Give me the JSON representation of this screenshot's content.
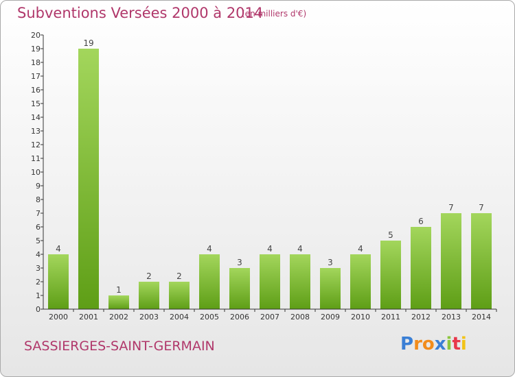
{
  "header": {
    "title": "Subventions Versées 2000 à 2014",
    "subtitle": "(en milliers d'€)"
  },
  "footer": {
    "commune": "SASSIERGES-SAINT-GERMAIN",
    "logo_letters": [
      "P",
      "r",
      "o",
      "x",
      "i",
      "t",
      "i"
    ],
    "logo_colors": [
      "#3a7fd5",
      "#f28c1c",
      "#f28c1c",
      "#3a7fd5",
      "#8cc63f",
      "#e8374a",
      "#f2c318"
    ]
  },
  "colors": {
    "bar_top": "#a3d65c",
    "bar_bottom": "#5e9e16",
    "title": "#b0376a",
    "axis": "#333333"
  },
  "chart_data": {
    "type": "bar",
    "categories": [
      "2000",
      "2001",
      "2002",
      "2003",
      "2004",
      "2005",
      "2006",
      "2007",
      "2008",
      "2009",
      "2010",
      "2011",
      "2012",
      "2013",
      "2014"
    ],
    "values": [
      4,
      19,
      1,
      2,
      2,
      4,
      3,
      4,
      4,
      3,
      4,
      5,
      6,
      7,
      7
    ],
    "ylim": [
      0,
      20
    ],
    "yticks": [
      0,
      1,
      2,
      3,
      4,
      5,
      6,
      7,
      8,
      9,
      10,
      11,
      12,
      13,
      14,
      15,
      16,
      17,
      18,
      19,
      20
    ],
    "grid": false,
    "title": "Subventions Versées 2000 à 2014",
    "xlabel": "",
    "ylabel": ""
  }
}
